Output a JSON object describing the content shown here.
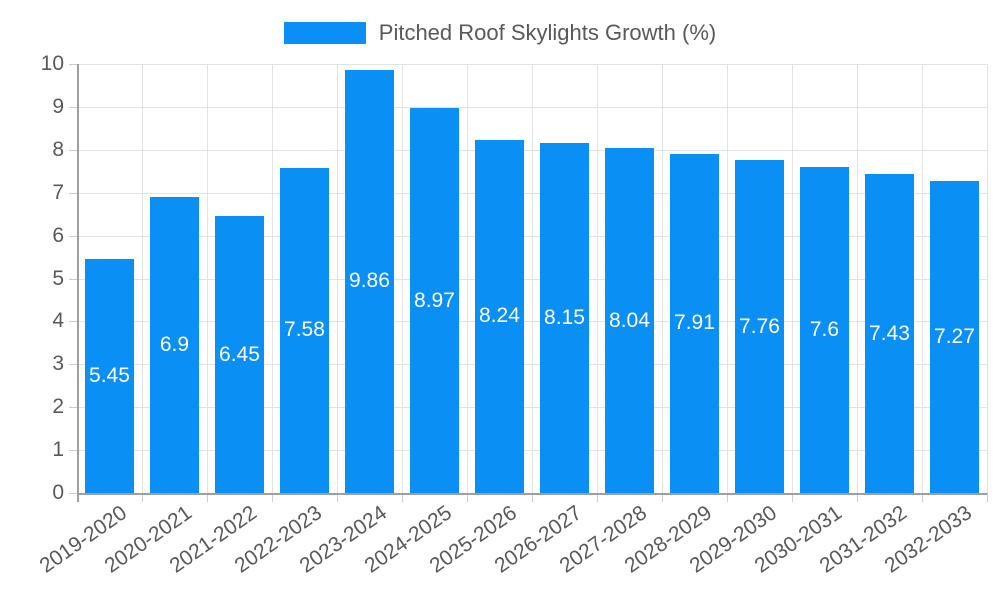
{
  "legend": {
    "label": "Pitched Roof Skylights Growth (%)"
  },
  "colors": {
    "bar": "#0a8ff5",
    "grid": "#e3e3e3",
    "tick": "#cccccc",
    "axis": "#9e9e9e",
    "text": "#595959",
    "value_label": "#ffffff",
    "background": "#ffffff"
  },
  "chart_data": {
    "type": "bar",
    "categories": [
      "2019-2020",
      "2020-2021",
      "2021-2022",
      "2022-2023",
      "2023-2024",
      "2024-2025",
      "2025-2026",
      "2026-2027",
      "2027-2028",
      "2028-2029",
      "2029-2030",
      "2030-2031",
      "2031-2032",
      "2032-2033"
    ],
    "values": [
      5.45,
      6.9,
      6.45,
      7.58,
      9.86,
      8.97,
      8.24,
      8.15,
      8.04,
      7.91,
      7.76,
      7.6,
      7.43,
      7.27
    ],
    "value_labels": [
      "5.45",
      "6.9",
      "6.45",
      "7.58",
      "9.86",
      "8.97",
      "8.24",
      "8.15",
      "8.04",
      "7.91",
      "7.76",
      "7.6",
      "7.43",
      "7.27"
    ],
    "title": "",
    "xlabel": "",
    "ylabel": "",
    "ylim": [
      0,
      10
    ],
    "yticks": [
      0,
      1,
      2,
      3,
      4,
      5,
      6,
      7,
      8,
      9,
      10
    ],
    "grid": true,
    "legend_position": "top",
    "legend_entries": [
      "Pitched Roof Skylights Growth (%)"
    ]
  }
}
